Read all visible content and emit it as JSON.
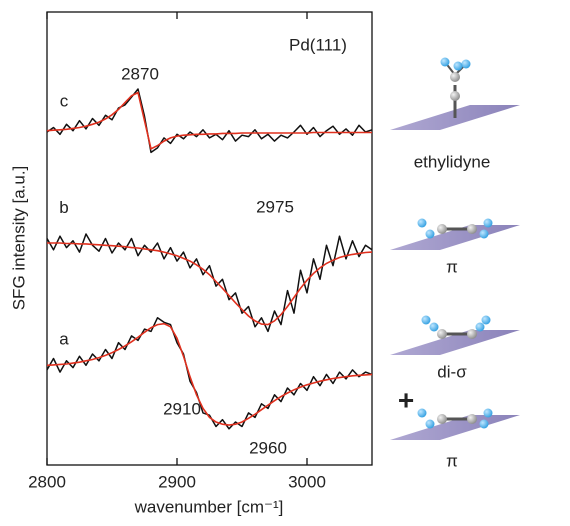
{
  "chart_data": {
    "type": "line",
    "x_label": "wavenumber [cm⁻¹]",
    "y_label": "SFG intensity [a.u.]",
    "x": [
      2800,
      2805,
      2810,
      2815,
      2820,
      2825,
      2830,
      2835,
      2840,
      2845,
      2850,
      2855,
      2860,
      2865,
      2870,
      2875,
      2880,
      2885,
      2890,
      2895,
      2900,
      2905,
      2910,
      2915,
      2920,
      2925,
      2930,
      2935,
      2940,
      2945,
      2950,
      2955,
      2960,
      2965,
      2970,
      2975,
      2980,
      2985,
      2990,
      2995,
      3000,
      3005,
      3010,
      3015,
      3020,
      3025,
      3030,
      3035,
      3040,
      3045,
      3050
    ],
    "xlim": [
      2800,
      3050
    ],
    "xticks": [
      2800,
      2900,
      3000
    ],
    "ylim": [
      0,
      10
    ],
    "series": [
      {
        "name": "a",
        "color": "#111111",
        "fit_color": "#e0301e",
        "values": [
          2.1,
          2.35,
          2.05,
          2.3,
          2.15,
          2.4,
          2.2,
          2.45,
          2.3,
          2.55,
          2.35,
          2.7,
          2.55,
          2.85,
          2.75,
          3.0,
          2.95,
          3.25,
          3.15,
          3.1,
          2.7,
          2.45,
          1.85,
          1.6,
          1.15,
          1.1,
          0.85,
          1.0,
          0.8,
          0.95,
          0.85,
          1.15,
          1.05,
          1.35,
          1.25,
          1.55,
          1.4,
          1.7,
          1.55,
          1.8,
          1.65,
          1.95,
          1.75,
          2.0,
          1.8,
          2.05,
          1.9,
          2.1,
          1.95,
          2.05,
          2.0
        ],
        "fit": [
          2.2,
          2.21,
          2.22,
          2.23,
          2.25,
          2.27,
          2.3,
          2.33,
          2.37,
          2.42,
          2.48,
          2.55,
          2.63,
          2.72,
          2.82,
          2.93,
          3.03,
          3.1,
          3.12,
          3.05,
          2.8,
          2.4,
          1.95,
          1.55,
          1.25,
          1.05,
          0.95,
          0.9,
          0.88,
          0.9,
          0.95,
          1.03,
          1.12,
          1.22,
          1.32,
          1.42,
          1.51,
          1.59,
          1.66,
          1.72,
          1.77,
          1.81,
          1.85,
          1.88,
          1.91,
          1.93,
          1.95,
          1.97,
          1.98,
          1.99,
          2.0
        ]
      },
      {
        "name": "b",
        "color": "#111111",
        "fit_color": "#e0301e",
        "values": [
          5.0,
          4.75,
          5.05,
          4.8,
          4.95,
          4.7,
          5.1,
          4.85,
          4.72,
          5.0,
          4.68,
          4.9,
          4.75,
          5.0,
          4.62,
          4.85,
          4.7,
          4.9,
          4.55,
          4.8,
          4.5,
          4.7,
          4.35,
          4.55,
          4.2,
          4.4,
          3.95,
          4.1,
          3.65,
          3.8,
          3.35,
          3.5,
          3.05,
          3.25,
          2.95,
          3.4,
          3.1,
          3.85,
          3.35,
          4.3,
          3.8,
          4.55,
          4.1,
          4.85,
          4.4,
          5.05,
          4.55,
          4.95,
          4.6,
          4.85,
          4.75
        ],
        "fit": [
          4.9,
          4.9,
          4.9,
          4.89,
          4.89,
          4.88,
          4.88,
          4.87,
          4.86,
          4.85,
          4.84,
          4.83,
          4.82,
          4.8,
          4.79,
          4.77,
          4.75,
          4.73,
          4.7,
          4.66,
          4.62,
          4.56,
          4.5,
          4.42,
          4.32,
          4.2,
          4.05,
          3.9,
          3.74,
          3.58,
          3.43,
          3.29,
          3.18,
          3.11,
          3.1,
          3.18,
          3.32,
          3.5,
          3.7,
          3.9,
          4.08,
          4.23,
          4.35,
          4.45,
          4.52,
          4.58,
          4.62,
          4.65,
          4.67,
          4.69,
          4.7
        ]
      },
      {
        "name": "c",
        "color": "#111111",
        "fit_color": "#e0301e",
        "values": [
          7.35,
          7.45,
          7.3,
          7.52,
          7.38,
          7.6,
          7.42,
          7.65,
          7.5,
          7.72,
          7.62,
          7.88,
          7.95,
          8.12,
          8.3,
          7.7,
          6.9,
          7.0,
          7.22,
          7.1,
          7.3,
          7.2,
          7.35,
          7.25,
          7.4,
          7.22,
          7.3,
          7.18,
          7.38,
          7.15,
          7.28,
          7.25,
          7.4,
          7.2,
          7.3,
          7.15,
          7.28,
          7.22,
          7.35,
          7.5,
          7.3,
          7.45,
          7.25,
          7.38,
          7.48,
          7.3,
          7.42,
          7.28,
          7.5,
          7.35,
          7.4
        ],
        "fit": [
          7.38,
          7.39,
          7.4,
          7.41,
          7.43,
          7.45,
          7.48,
          7.52,
          7.57,
          7.64,
          7.73,
          7.85,
          8.0,
          8.15,
          8.22,
          7.6,
          6.98,
          7.05,
          7.15,
          7.22,
          7.26,
          7.28,
          7.29,
          7.3,
          7.3,
          7.31,
          7.31,
          7.32,
          7.32,
          7.32,
          7.33,
          7.33,
          7.33,
          7.33,
          7.33,
          7.33,
          7.33,
          7.33,
          7.33,
          7.33,
          7.33,
          7.34,
          7.34,
          7.34,
          7.34,
          7.34,
          7.34,
          7.34,
          7.34,
          7.34,
          7.34
        ]
      }
    ],
    "annotations": [
      "Pd(111)",
      "2870",
      "2975",
      "2910",
      "2960"
    ]
  },
  "species": {
    "labels": [
      "ethylidyne",
      "π",
      "di-σ",
      "+",
      "π"
    ]
  }
}
